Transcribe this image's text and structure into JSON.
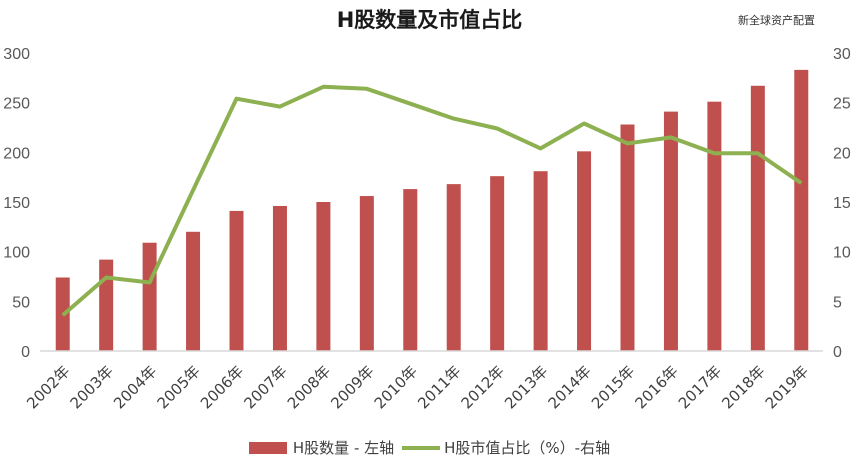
{
  "title": "H股数量及市值占比",
  "source_label": "新全球资产配置",
  "colors": {
    "bar": "#C0504D",
    "line": "#8DB051",
    "axis": "#D9D9D9"
  },
  "legend": [
    {
      "label": "H股数量 - 左轴",
      "type": "bar"
    },
    {
      "label": "H股市值占比（%）-右轴",
      "type": "line"
    }
  ],
  "chart_data": {
    "type": "bar+line",
    "title": "H股数量及市值占比",
    "categories": [
      "2002年",
      "2003年",
      "2004年",
      "2005年",
      "2006年",
      "2007年",
      "2008年",
      "2009年",
      "2010年",
      "2011年",
      "2012年",
      "2013年",
      "2014年",
      "2015年",
      "2016年",
      "2017年",
      "2018年",
      "2019年"
    ],
    "series": [
      {
        "name": "H股数量 - 左轴",
        "type": "bar",
        "axis": "left",
        "values": [
          74,
          92,
          109,
          120,
          141,
          146,
          150,
          156,
          163,
          168,
          176,
          181,
          201,
          228,
          241,
          251,
          267,
          283
        ]
      },
      {
        "name": "H股市值占比（%）-右轴",
        "type": "line",
        "axis": "right",
        "values": [
          3.6,
          7.4,
          6.9,
          16.2,
          25.4,
          24.6,
          26.6,
          26.4,
          24.9,
          23.4,
          22.4,
          20.4,
          22.9,
          20.9,
          21.5,
          19.9,
          19.9,
          16.9
        ]
      }
    ],
    "left_axis": {
      "min": 0,
      "max": 300,
      "ticks": [
        0,
        50,
        100,
        150,
        200,
        250,
        300
      ]
    },
    "right_axis": {
      "min": 0,
      "max": 30,
      "ticks": [
        0,
        5,
        10,
        15,
        20,
        25,
        30
      ]
    },
    "xlabel": "",
    "ylabel": "",
    "grid": false,
    "legend_position": "bottom"
  }
}
